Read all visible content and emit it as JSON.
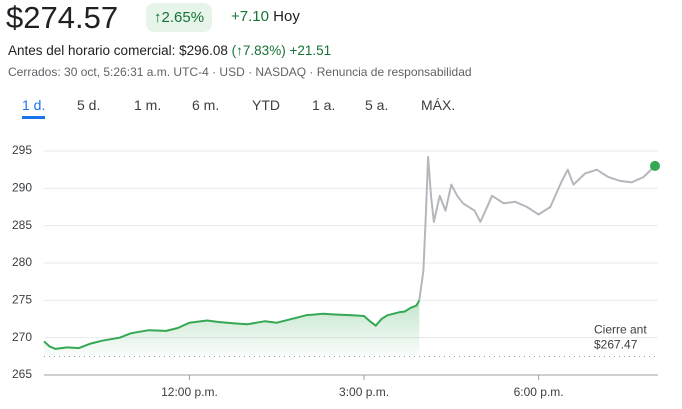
{
  "header": {
    "price": "$274.57",
    "change_pct": "↑2.65%",
    "change": "+7.10",
    "change_period": "Hoy",
    "premarket_label": "Antes del horario comercial:",
    "premarket_price": "$296.08",
    "premarket_change_pct": "(↑7.83%)",
    "premarket_change": "+21.51",
    "status": "Cerrados: 30 oct, 5:26:31 a.m. UTC-4 · USD · NASDAQ · Renuncia de responsabilidad"
  },
  "tabs": [
    "1 d.",
    "5 d.",
    "1 m.",
    "6 m.",
    "YTD",
    "1 a.",
    "5 a.",
    "MÁX."
  ],
  "chart_data": {
    "type": "line",
    "xlim": [
      9.5,
      20
    ],
    "xticks": [
      {
        "value": 12,
        "label": "12:00 p.m."
      },
      {
        "value": 15,
        "label": "3:00 p.m."
      },
      {
        "value": 18,
        "label": "6:00 p.m."
      }
    ],
    "ylim": [
      265,
      295
    ],
    "yticks": [
      265,
      270,
      275,
      280,
      285,
      290,
      295
    ],
    "grid": true,
    "previous_close": 267.47,
    "previous_close_label": "$267.47",
    "previous_close_title": "Cierre ant",
    "series": [
      {
        "color": "#34a853",
        "x": [
          9.5,
          9.6,
          9.7,
          9.9,
          10.1,
          10.3,
          10.5,
          10.8,
          11.0,
          11.3,
          11.6,
          11.8,
          12.0,
          12.3,
          12.5,
          12.8,
          13.0,
          13.3,
          13.5,
          13.8,
          14.0,
          14.3,
          14.5,
          14.8,
          15.0,
          15.1,
          15.2,
          15.3,
          15.4,
          15.6,
          15.7,
          15.8,
          15.9,
          15.95
        ],
        "values": [
          269.5,
          268.8,
          268.5,
          268.7,
          268.6,
          269.2,
          269.6,
          270.0,
          270.6,
          271.0,
          270.9,
          271.3,
          272.0,
          272.3,
          272.1,
          271.9,
          271.8,
          272.2,
          272.0,
          272.6,
          273.0,
          273.2,
          273.1,
          273.0,
          272.9,
          272.2,
          271.6,
          272.5,
          273.0,
          273.4,
          273.5,
          274.0,
          274.3,
          275.0
        ]
      },
      {
        "color": "#b4b7bb",
        "x": [
          15.95,
          16.02,
          16.06,
          16.1,
          16.15,
          16.2,
          16.3,
          16.4,
          16.5,
          16.6,
          16.7,
          16.9,
          17.0,
          17.2,
          17.4,
          17.6,
          17.8,
          18.0,
          18.2,
          18.4,
          18.5,
          18.6,
          18.8,
          19.0,
          19.2,
          19.4,
          19.6,
          19.8,
          20.0
        ],
        "values": [
          275.0,
          279.0,
          286.0,
          294.2,
          289.0,
          285.5,
          289.0,
          287.0,
          290.5,
          289.0,
          288.0,
          287.0,
          285.5,
          289.0,
          288.0,
          288.2,
          287.5,
          286.5,
          287.5,
          291.0,
          292.5,
          290.5,
          292.0,
          292.5,
          291.5,
          291.0,
          290.8,
          291.5,
          293.0
        ]
      }
    ]
  }
}
